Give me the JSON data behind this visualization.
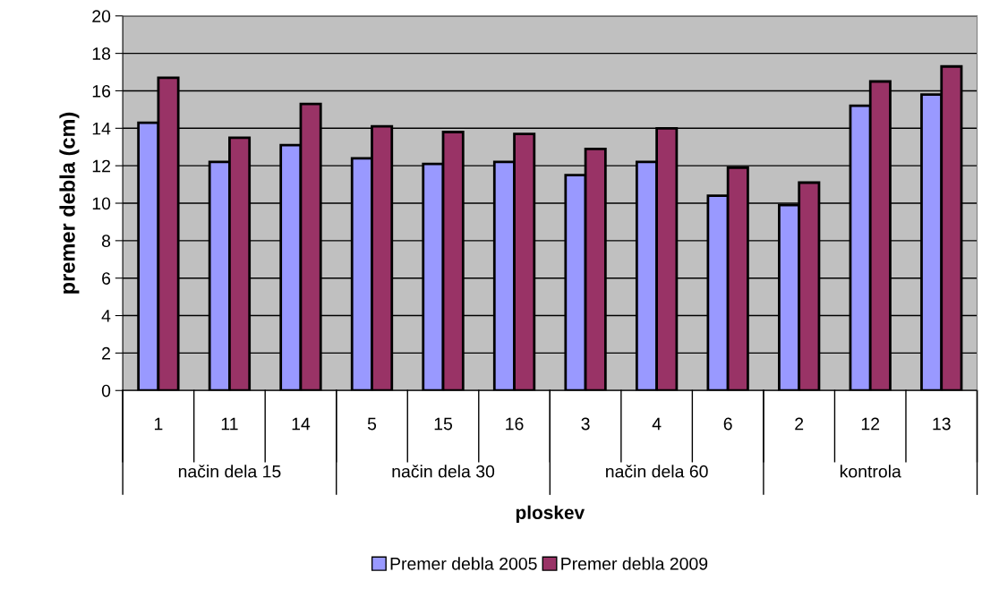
{
  "chart_data": {
    "type": "bar",
    "ylabel": "premer debla (cm)",
    "xlabel": "ploskev",
    "categories": [
      "1",
      "11",
      "14",
      "5",
      "15",
      "16",
      "3",
      "4",
      "6",
      "2",
      "12",
      "13"
    ],
    "series": [
      {
        "name": "Premer debla 2005",
        "color": "#9999ff",
        "values": [
          14.3,
          12.2,
          13.1,
          12.4,
          12.1,
          12.2,
          11.5,
          12.2,
          10.4,
          9.9,
          15.2,
          15.8
        ]
      },
      {
        "name": "Premer debla 2009",
        "color": "#993366",
        "values": [
          16.7,
          13.5,
          15.3,
          14.1,
          13.8,
          13.7,
          12.9,
          14.0,
          11.9,
          11.1,
          16.5,
          17.3
        ]
      }
    ],
    "annotations": [
      "način dela 15",
      "način dela 30",
      "način dela 60",
      "kontrola"
    ],
    "ylim": [
      0,
      20
    ],
    "yticks": [
      0,
      2,
      4,
      6,
      8,
      10,
      12,
      14,
      16,
      18,
      20
    ],
    "grid": "y",
    "legend": "bottom"
  }
}
